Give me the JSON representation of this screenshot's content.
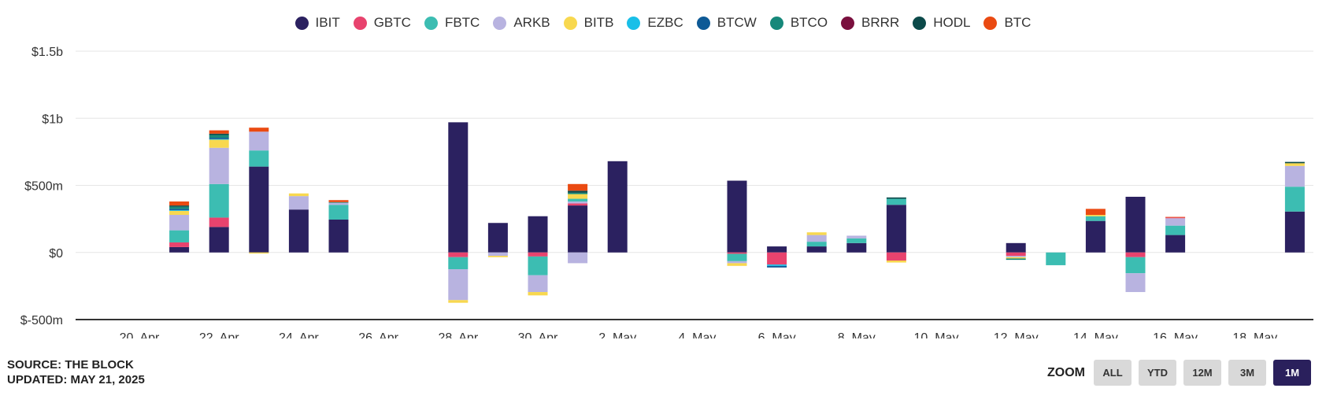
{
  "legend": [
    {
      "name": "IBIT",
      "color": "#2b2160"
    },
    {
      "name": "GBTC",
      "color": "#e8436e"
    },
    {
      "name": "FBTC",
      "color": "#3cbdb2"
    },
    {
      "name": "ARKB",
      "color": "#b8b3e0"
    },
    {
      "name": "BITB",
      "color": "#f8d84f"
    },
    {
      "name": "EZBC",
      "color": "#19bfe8"
    },
    {
      "name": "BTCW",
      "color": "#0e5a96"
    },
    {
      "name": "BTCO",
      "color": "#16887a"
    },
    {
      "name": "BRRR",
      "color": "#7a0f3e"
    },
    {
      "name": "HODL",
      "color": "#0c4a4a"
    },
    {
      "name": "BTC",
      "color": "#ea4a12"
    }
  ],
  "chart_data": {
    "type": "bar",
    "stacked": true,
    "ylim": [
      -500,
      1500
    ],
    "yticks": [
      -500,
      0,
      500,
      1000,
      1500
    ],
    "ytick_labels": [
      "$-500m",
      "$0",
      "$500m",
      "$1b",
      "$1.5b"
    ],
    "xtick_labels": [
      "20. Apr",
      "22. Apr",
      "24. Apr",
      "26. Apr",
      "28. Apr",
      "30. Apr",
      "2. May",
      "4. May",
      "6. May",
      "8. May",
      "10. May",
      "12. May",
      "14. May",
      "16. May",
      "18. May"
    ],
    "xtick_day_index": [
      0,
      2,
      4,
      6,
      8,
      10,
      12,
      14,
      16,
      18,
      20,
      22,
      24,
      26,
      28
    ],
    "days": [
      {
        "day": 1,
        "pos": [
          [
            "IBIT",
            40
          ],
          [
            "GBTC",
            35
          ],
          [
            "FBTC",
            90
          ],
          [
            "ARKB",
            115
          ],
          [
            "BITB",
            30
          ],
          [
            "EZBC",
            5
          ],
          [
            "BTCW",
            10
          ],
          [
            "BTCO",
            15
          ],
          [
            "HODL",
            10
          ],
          [
            "BTC",
            30
          ]
        ],
        "neg": []
      },
      {
        "day": 2,
        "pos": [
          [
            "IBIT",
            190
          ],
          [
            "GBTC",
            70
          ],
          [
            "FBTC",
            250
          ],
          [
            "ARKB",
            270
          ],
          [
            "BITB",
            60
          ],
          [
            "EZBC",
            5
          ],
          [
            "BTCW",
            10
          ],
          [
            "BTCO",
            20
          ],
          [
            "HODL",
            10
          ],
          [
            "BTC",
            25
          ]
        ],
        "neg": []
      },
      {
        "day": 3,
        "pos": [
          [
            "IBIT",
            640
          ],
          [
            "FBTC",
            120
          ],
          [
            "ARKB",
            140
          ],
          [
            "BTC",
            30
          ]
        ],
        "neg": [
          [
            "BITB",
            -8
          ]
        ]
      },
      {
        "day": 4,
        "pos": [
          [
            "IBIT",
            320
          ],
          [
            "ARKB",
            100
          ],
          [
            "BITB",
            20
          ]
        ],
        "neg": []
      },
      {
        "day": 5,
        "pos": [
          [
            "IBIT",
            245
          ],
          [
            "FBTC",
            110
          ],
          [
            "ARKB",
            15
          ],
          [
            "BTCO",
            5
          ],
          [
            "BTC",
            15
          ]
        ],
        "neg": []
      },
      {
        "day": 8,
        "pos": [
          [
            "IBIT",
            970
          ]
        ],
        "neg": [
          [
            "GBTC",
            -35
          ],
          [
            "FBTC",
            -90
          ],
          [
            "ARKB",
            -230
          ],
          [
            "BITB",
            -20
          ]
        ]
      },
      {
        "day": 9,
        "pos": [
          [
            "IBIT",
            220
          ]
        ],
        "neg": [
          [
            "ARKB",
            -25
          ],
          [
            "BITB",
            -10
          ]
        ]
      },
      {
        "day": 10,
        "pos": [
          [
            "IBIT",
            270
          ]
        ],
        "neg": [
          [
            "GBTC",
            -30
          ],
          [
            "FBTC",
            -140
          ],
          [
            "ARKB",
            -125
          ],
          [
            "BITB",
            -25
          ]
        ]
      },
      {
        "day": 11,
        "pos": [
          [
            "IBIT",
            350
          ],
          [
            "GBTC",
            15
          ],
          [
            "ARKB",
            15
          ],
          [
            "FBTC",
            20
          ],
          [
            "BITB",
            35
          ],
          [
            "BTCO",
            10
          ],
          [
            "HODL",
            15
          ],
          [
            "BTC",
            50
          ]
        ],
        "neg": [
          [
            "ARKB",
            -80
          ]
        ]
      },
      {
        "day": 12,
        "pos": [
          [
            "IBIT",
            680
          ]
        ],
        "neg": []
      },
      {
        "day": 15,
        "pos": [
          [
            "IBIT",
            535
          ]
        ],
        "neg": [
          [
            "GBTC",
            -10
          ],
          [
            "FBTC",
            -55
          ],
          [
            "ARKB",
            -15
          ],
          [
            "BITB",
            -20
          ]
        ]
      },
      {
        "day": 16,
        "pos": [
          [
            "IBIT",
            45
          ]
        ],
        "neg": [
          [
            "GBTC",
            -90
          ],
          [
            "EZBC",
            -10
          ],
          [
            "BTCW",
            -12
          ]
        ]
      },
      {
        "day": 17,
        "pos": [
          [
            "IBIT",
            45
          ],
          [
            "FBTC",
            35
          ],
          [
            "ARKB",
            50
          ],
          [
            "BITB",
            20
          ]
        ],
        "neg": []
      },
      {
        "day": 18,
        "pos": [
          [
            "IBIT",
            70
          ],
          [
            "FBTC",
            35
          ],
          [
            "ARKB",
            20
          ]
        ],
        "neg": []
      },
      {
        "day": 19,
        "pos": [
          [
            "IBIT",
            355
          ],
          [
            "FBTC",
            45
          ],
          [
            "HODL",
            10
          ]
        ],
        "neg": [
          [
            "GBTC",
            -60
          ],
          [
            "BITB",
            -15
          ]
        ]
      },
      {
        "day": 22,
        "pos": [
          [
            "IBIT",
            70
          ]
        ],
        "neg": [
          [
            "GBTC",
            -25
          ],
          [
            "ARKB",
            -10
          ],
          [
            "BITB",
            -10
          ],
          [
            "BTCO",
            -10
          ]
        ]
      },
      {
        "day": 23,
        "pos": [],
        "neg": [
          [
            "FBTC",
            -95
          ]
        ]
      },
      {
        "day": 24,
        "pos": [
          [
            "IBIT",
            235
          ],
          [
            "FBTC",
            35
          ],
          [
            "BITB",
            10
          ],
          [
            "BTC",
            45
          ]
        ],
        "neg": []
      },
      {
        "day": 25,
        "pos": [
          [
            "IBIT",
            415
          ]
        ],
        "neg": [
          [
            "GBTC",
            -35
          ],
          [
            "FBTC",
            -120
          ],
          [
            "ARKB",
            -140
          ]
        ]
      },
      {
        "day": 26,
        "pos": [
          [
            "IBIT",
            130
          ],
          [
            "FBTC",
            70
          ],
          [
            "ARKB",
            55
          ],
          [
            "GBTC",
            5
          ],
          [
            "BTC",
            5
          ]
        ],
        "neg": []
      },
      {
        "day": 29,
        "pos": [
          [
            "IBIT",
            305
          ],
          [
            "FBTC",
            185
          ],
          [
            "ARKB",
            155
          ],
          [
            "BITB",
            20
          ],
          [
            "HODL",
            10
          ]
        ],
        "neg": []
      }
    ]
  },
  "source": {
    "line1": "SOURCE: THE BLOCK",
    "line2": "UPDATED: MAY 21, 2025"
  },
  "zoom": {
    "label": "ZOOM",
    "buttons": [
      "ALL",
      "YTD",
      "12M",
      "3M",
      "1M"
    ],
    "active": "1M"
  }
}
